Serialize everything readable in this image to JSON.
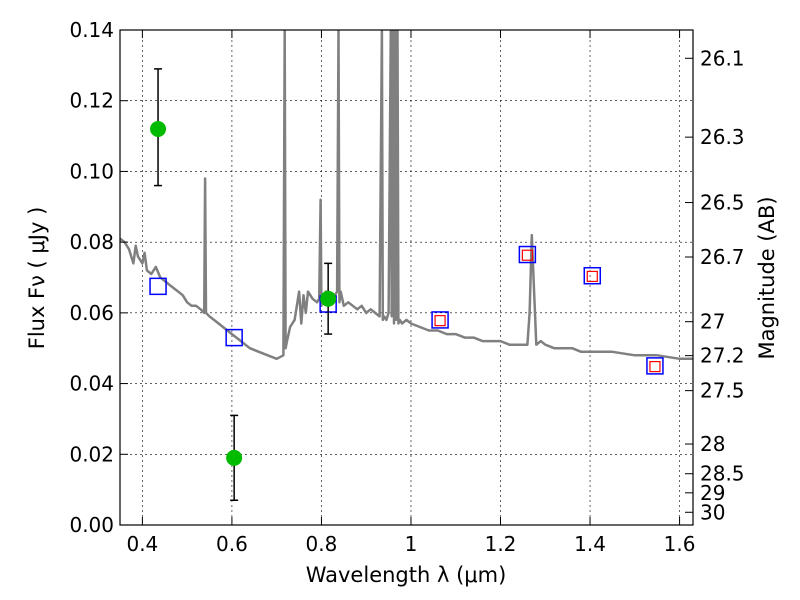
{
  "chart_data": {
    "type": "line",
    "title": "",
    "xlabel": "Wavelength  λ (μm)",
    "ylabel": "Flux  Fν  ( μJy )",
    "y2label": "Magnitude (AB)",
    "xlim": [
      0.35,
      1.63
    ],
    "ylim": [
      0.0,
      0.14
    ],
    "grid": true,
    "colors": {
      "spectrum": "#808080",
      "observed": "#00bb00",
      "model_box": "#0000ff",
      "model_inner": "#ff0000",
      "errorbar": "#000000"
    },
    "x_ticks": [
      {
        "value": 0.4,
        "label": "0.4"
      },
      {
        "value": 0.6,
        "label": "0.6"
      },
      {
        "value": 0.8,
        "label": "0.8"
      },
      {
        "value": 1.0,
        "label": "1"
      },
      {
        "value": 1.2,
        "label": "1.2"
      },
      {
        "value": 1.4,
        "label": "1.4"
      },
      {
        "value": 1.6,
        "label": "1.6"
      }
    ],
    "y_ticks": [
      {
        "value": 0.0,
        "label": "0.00"
      },
      {
        "value": 0.02,
        "label": "0.02"
      },
      {
        "value": 0.04,
        "label": "0.04"
      },
      {
        "value": 0.06,
        "label": "0.06"
      },
      {
        "value": 0.08,
        "label": "0.08"
      },
      {
        "value": 0.1,
        "label": "0.10"
      },
      {
        "value": 0.12,
        "label": "0.12"
      },
      {
        "value": 0.14,
        "label": "0.14"
      }
    ],
    "y2_ticks": [
      {
        "flux": 0.132,
        "label": "26.1"
      },
      {
        "flux": 0.1097,
        "label": "26.3"
      },
      {
        "flux": 0.0912,
        "label": "26.5"
      },
      {
        "flux": 0.0758,
        "label": "26.7"
      },
      {
        "flux": 0.0575,
        "label": "27"
      },
      {
        "flux": 0.0479,
        "label": "27.2"
      },
      {
        "flux": 0.038,
        "label": "27.5"
      },
      {
        "flux": 0.0229,
        "label": "28"
      },
      {
        "flux": 0.0145,
        "label": "28.5"
      },
      {
        "flux": 0.0091,
        "label": "29"
      },
      {
        "flux": 0.0036,
        "label": "30"
      }
    ],
    "spectrum": {
      "x": [
        0.35,
        0.36,
        0.37,
        0.38,
        0.385,
        0.39,
        0.4,
        0.405,
        0.41,
        0.42,
        0.43,
        0.44,
        0.45,
        0.46,
        0.47,
        0.48,
        0.49,
        0.5,
        0.51,
        0.52,
        0.53,
        0.538,
        0.54,
        0.542,
        0.55,
        0.56,
        0.58,
        0.6,
        0.62,
        0.64,
        0.66,
        0.68,
        0.7,
        0.715,
        0.718,
        0.72,
        0.723,
        0.73,
        0.74,
        0.75,
        0.755,
        0.76,
        0.765,
        0.77,
        0.78,
        0.79,
        0.795,
        0.798,
        0.8,
        0.805,
        0.81,
        0.82,
        0.83,
        0.835,
        0.838,
        0.84,
        0.843,
        0.85,
        0.86,
        0.87,
        0.88,
        0.89,
        0.9,
        0.91,
        0.92,
        0.93,
        0.935,
        0.937,
        0.94,
        0.945,
        0.95,
        0.955,
        0.957,
        0.96,
        0.962,
        0.965,
        0.967,
        0.97,
        0.972,
        0.975,
        0.98,
        0.99,
        1.0,
        1.02,
        1.04,
        1.06,
        1.08,
        1.1,
        1.12,
        1.14,
        1.16,
        1.18,
        1.2,
        1.22,
        1.24,
        1.25,
        1.26,
        1.265,
        1.27,
        1.275,
        1.28,
        1.29,
        1.3,
        1.32,
        1.34,
        1.36,
        1.38,
        1.4,
        1.45,
        1.5,
        1.55,
        1.6,
        1.63
      ],
      "y": [
        0.081,
        0.08,
        0.078,
        0.074,
        0.079,
        0.076,
        0.074,
        0.077,
        0.072,
        0.071,
        0.073,
        0.07,
        0.069,
        0.068,
        0.067,
        0.066,
        0.065,
        0.063,
        0.062,
        0.062,
        0.061,
        0.06,
        0.098,
        0.06,
        0.059,
        0.058,
        0.056,
        0.054,
        0.052,
        0.05,
        0.049,
        0.048,
        0.047,
        0.048,
        0.14,
        0.05,
        0.052,
        0.056,
        0.058,
        0.066,
        0.057,
        0.065,
        0.06,
        0.066,
        0.064,
        0.063,
        0.064,
        0.092,
        0.062,
        0.065,
        0.066,
        0.064,
        0.065,
        0.066,
        0.14,
        0.063,
        0.066,
        0.062,
        0.063,
        0.062,
        0.061,
        0.062,
        0.06,
        0.061,
        0.06,
        0.059,
        0.14,
        0.058,
        0.059,
        0.058,
        0.06,
        0.14,
        0.059,
        0.14,
        0.057,
        0.14,
        0.058,
        0.14,
        0.057,
        0.058,
        0.057,
        0.058,
        0.057,
        0.056,
        0.055,
        0.055,
        0.054,
        0.054,
        0.053,
        0.053,
        0.052,
        0.052,
        0.052,
        0.051,
        0.051,
        0.051,
        0.051,
        0.06,
        0.082,
        0.066,
        0.051,
        0.052,
        0.051,
        0.05,
        0.05,
        0.05,
        0.049,
        0.049,
        0.049,
        0.048,
        0.048,
        0.047,
        0.047
      ]
    },
    "series": [
      {
        "marker": "green-dot-errorbar",
        "points": [
          {
            "x": 0.435,
            "y": 0.112,
            "ylo": 0.096,
            "yhi": 0.129
          },
          {
            "x": 0.605,
            "y": 0.019,
            "ylo": 0.007,
            "yhi": 0.031
          },
          {
            "x": 0.815,
            "y": 0.064,
            "ylo": 0.054,
            "yhi": 0.074
          }
        ]
      },
      {
        "marker": "blue-open-square",
        "points": [
          {
            "x": 0.435,
            "y": 0.0675
          },
          {
            "x": 0.605,
            "y": 0.053
          },
          {
            "x": 0.815,
            "y": 0.0625
          },
          {
            "x": 1.065,
            "y": 0.058
          },
          {
            "x": 1.26,
            "y": 0.0765
          },
          {
            "x": 1.405,
            "y": 0.0705
          },
          {
            "x": 1.545,
            "y": 0.045
          }
        ]
      },
      {
        "marker": "red-open-square",
        "points": [
          {
            "x": 1.065,
            "y": 0.0578
          },
          {
            "x": 1.26,
            "y": 0.0763
          },
          {
            "x": 1.405,
            "y": 0.0703
          },
          {
            "x": 1.545,
            "y": 0.0448
          }
        ]
      }
    ]
  }
}
